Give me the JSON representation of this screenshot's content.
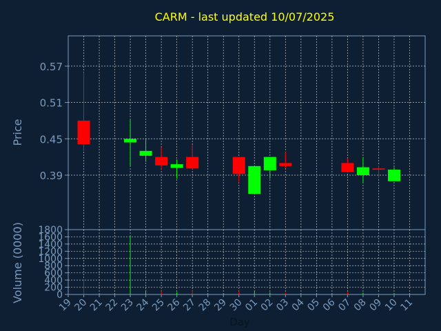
{
  "chart_data": {
    "type": "candlestick",
    "title": "CARM - last updated 10/07/2025",
    "xlabel": "Day",
    "ylabel": "Price",
    "volume_label": "Volume (0000)",
    "price_ylim": [
      0.3,
      0.62
    ],
    "price_ticks": [
      "0.57",
      "0.51",
      "0.45",
      "0.39"
    ],
    "volume_ylim": [
      0,
      1800
    ],
    "volume_ticks": [
      "1800",
      "1600",
      "1400",
      "1200",
      "1000",
      "800",
      "600",
      "400",
      "200",
      "0"
    ],
    "x_ticks": [
      "19",
      "20",
      "21",
      "22",
      "23",
      "24",
      "25",
      "26",
      "27",
      "28",
      "29",
      "30",
      "01",
      "02",
      "03",
      "04",
      "05",
      "06",
      "07",
      "08",
      "09",
      "10",
      "11"
    ],
    "grid": true,
    "colors": {
      "background": "#0e1f33",
      "plot_background": "#0e1f33",
      "up": "#00ff00",
      "down": "#ff0000",
      "title": "#ffff00",
      "axis": "#7a9bbd"
    },
    "candles": [
      {
        "x": "20",
        "open": 0.48,
        "high": 0.56,
        "low": 0.43,
        "close": 0.441,
        "volume": 420
      },
      {
        "x": "23",
        "open": 0.444,
        "high": 0.481,
        "low": 0.405,
        "close": 0.45,
        "volume": 1650
      },
      {
        "x": "24",
        "open": 0.422,
        "high": 0.45,
        "low": 0.412,
        "close": 0.43,
        "volume": 120
      },
      {
        "x": "25",
        "open": 0.42,
        "high": 0.436,
        "low": 0.4,
        "close": 0.406,
        "volume": 90
      },
      {
        "x": "26",
        "open": 0.402,
        "high": 0.416,
        "low": 0.384,
        "close": 0.408,
        "volume": 60
      },
      {
        "x": "27",
        "open": 0.42,
        "high": 0.44,
        "low": 0.4,
        "close": 0.401,
        "volume": 100
      },
      {
        "x": "30",
        "open": 0.42,
        "high": 0.42,
        "low": 0.378,
        "close": 0.392,
        "volume": 90
      },
      {
        "x": "01",
        "open": 0.359,
        "high": 0.404,
        "low": 0.359,
        "close": 0.405,
        "volume": 80
      },
      {
        "x": "02",
        "open": 0.398,
        "high": 0.42,
        "low": 0.384,
        "close": 0.42,
        "volume": 60
      },
      {
        "x": "03",
        "open": 0.41,
        "high": 0.428,
        "low": 0.401,
        "close": 0.405,
        "volume": 50
      },
      {
        "x": "07",
        "open": 0.41,
        "high": 0.418,
        "low": 0.395,
        "close": 0.395,
        "volume": 60
      },
      {
        "x": "08",
        "open": 0.39,
        "high": 0.42,
        "low": 0.378,
        "close": 0.403,
        "volume": 50
      },
      {
        "x": "09",
        "open": 0.401,
        "high": 0.406,
        "low": 0.385,
        "close": 0.399,
        "volume": 40
      },
      {
        "x": "10",
        "open": 0.38,
        "high": 0.403,
        "low": 0.38,
        "close": 0.399,
        "volume": 40
      }
    ]
  }
}
